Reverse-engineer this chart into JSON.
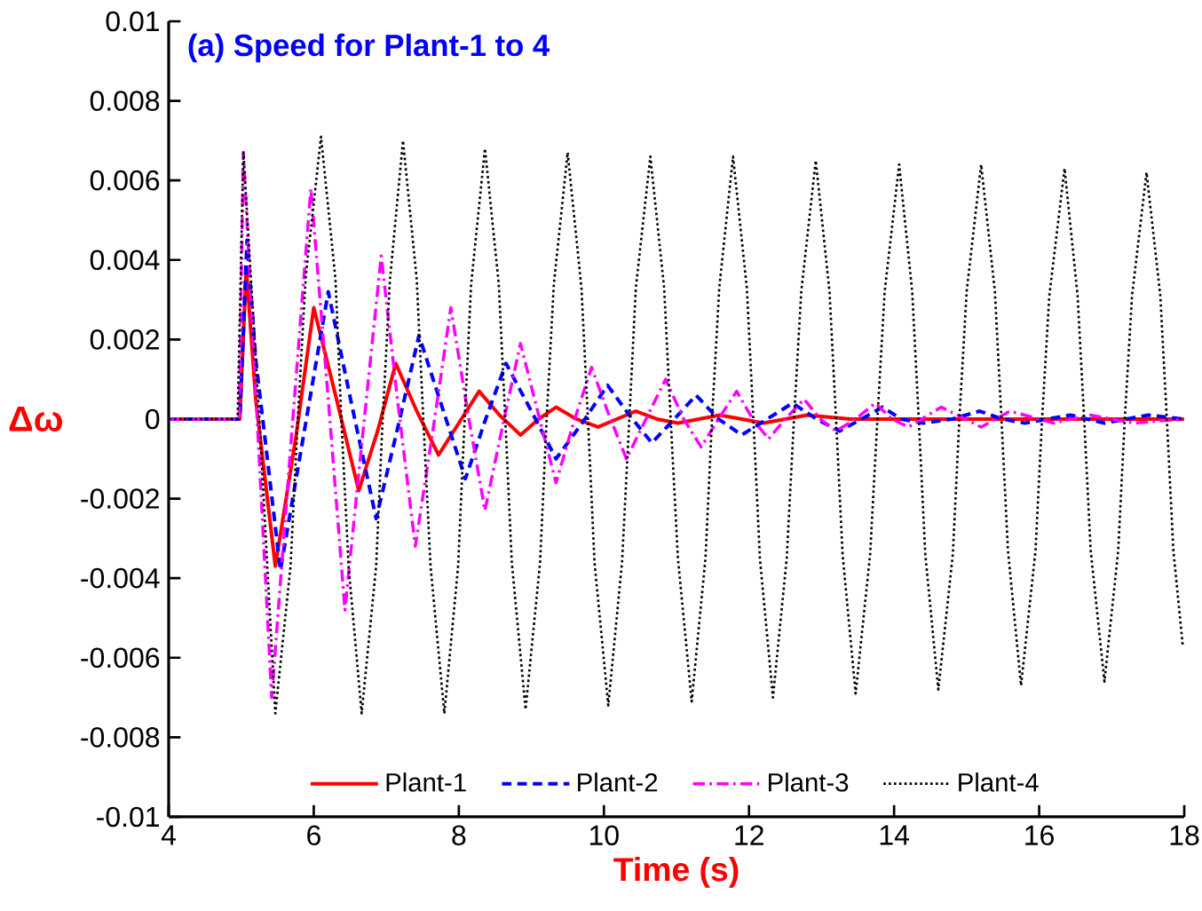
{
  "chart_data": {
    "type": "line",
    "title": "(a) Speed for Plant-1 to 4",
    "xlabel": "Time (s)",
    "ylabel": "Δω",
    "xlim": [
      4,
      18
    ],
    "xticks": [
      4,
      6,
      8,
      10,
      12,
      14,
      16,
      18
    ],
    "ylim": [
      -0.01,
      0.01
    ],
    "yticks": [
      -0.01,
      -0.008,
      -0.006,
      -0.004,
      -0.002,
      0,
      0.002,
      0.004,
      0.006,
      0.008,
      0.01
    ],
    "grid": false,
    "legend": "bottom",
    "marker": "none",
    "series": [
      {
        "name": "Plant-1",
        "color": "#ff0000",
        "line_style": "solid",
        "x": [
          4,
          4.98,
          5.07,
          5.2,
          5.47,
          5.75,
          6.0,
          6.3,
          6.62,
          6.88,
          7.13,
          7.42,
          7.72,
          8.0,
          8.28,
          8.56,
          8.85,
          9.1,
          9.34,
          9.62,
          9.92,
          10.18,
          10.44,
          10.73,
          11.02,
          11.6,
          12.2,
          12.8,
          13.4,
          14.5,
          15.5,
          16.5,
          18
        ],
        "values": [
          0,
          0,
          0.0038,
          0.0005,
          -0.0037,
          -0.0005,
          0.0028,
          0.0006,
          -0.0018,
          -0.0003,
          0.0014,
          0.0002,
          -0.0009,
          -0.0001,
          0.0007,
          0.0001,
          -0.0004,
          0,
          0.0003,
          0,
          -0.0002,
          0,
          0.0002,
          0,
          -0.0001,
          0.0001,
          -0.0001,
          0.0001,
          0,
          0,
          0,
          0,
          0
        ]
      },
      {
        "name": "Plant-2",
        "color": "#0000ff",
        "line_style": "dashed",
        "x": [
          4,
          4.98,
          5.08,
          5.2,
          5.54,
          5.87,
          6.2,
          6.53,
          6.86,
          7.16,
          7.45,
          7.77,
          8.09,
          8.37,
          8.65,
          9.0,
          9.34,
          9.7,
          10.05,
          10.35,
          10.66,
          10.97,
          11.27,
          11.58,
          11.9,
          12.25,
          12.6,
          12.93,
          13.25,
          13.55,
          13.84,
          14.1,
          14.4,
          14.8,
          15.18,
          15.5,
          15.8,
          16.43,
          16.9,
          17.5,
          18
        ],
        "values": [
          0,
          0,
          0.0045,
          0.0015,
          -0.0038,
          -0.0003,
          0.0032,
          0.0003,
          -0.0025,
          -0.0002,
          0.0021,
          0.0003,
          -0.0015,
          0,
          0.0014,
          0.0002,
          -0.001,
          -0.0001,
          0.00085,
          0.0001,
          -0.0006,
          0,
          0.0006,
          0,
          -0.0004,
          0,
          0.0004,
          0,
          -0.0003,
          0,
          0.0003,
          0,
          -0.0001,
          0,
          0.0002,
          0,
          -0.0001,
          0.0001,
          -0.0001,
          0.0001,
          0
        ]
      },
      {
        "name": "Plant-3",
        "color": "#ff00ff",
        "line_style": "dashdot",
        "x": [
          4,
          4.97,
          5.03,
          5.22,
          5.42,
          5.69,
          5.96,
          6.2,
          6.43,
          6.68,
          6.93,
          7.16,
          7.4,
          7.65,
          7.89,
          8.12,
          8.36,
          8.6,
          8.85,
          9.1,
          9.34,
          9.58,
          9.83,
          10.07,
          10.31,
          10.58,
          10.85,
          11.1,
          11.34,
          11.58,
          11.83,
          12.05,
          12.27,
          12.5,
          12.76,
          12.98,
          13.2,
          13.47,
          13.74,
          13.97,
          14.2,
          14.65,
          15.2,
          15.6,
          16.2,
          16.7,
          17.3,
          18
        ],
        "values": [
          0,
          0,
          0.0067,
          0,
          -0.007,
          -0.0005,
          0.0058,
          0.0005,
          -0.0048,
          -0.0003,
          0.0041,
          0.0004,
          -0.0032,
          -0.0002,
          0.0028,
          0.0002,
          -0.0023,
          -0.0002,
          0.0019,
          0.0001,
          -0.0016,
          -0.0001,
          0.0013,
          0.0001,
          -0.001,
          0,
          0.001,
          0,
          -0.0007,
          0,
          0.0007,
          0,
          -0.0005,
          0,
          0.0005,
          0,
          -0.0003,
          0,
          0.0004,
          0,
          -0.0002,
          0.0003,
          -0.0002,
          0.0002,
          -0.0001,
          0.0001,
          -0.0001,
          0
        ]
      },
      {
        "name": "Plant-4",
        "color": "#000000",
        "line_style": "dotted",
        "x": [
          4,
          4.95,
          5.03,
          5.25,
          5.47,
          5.68,
          5.78,
          5.89,
          6.1,
          6.3,
          6.38,
          6.48,
          6.66,
          6.86,
          6.95,
          7.05,
          7.23,
          7.42,
          7.51,
          7.61,
          7.8,
          7.99,
          8.08,
          8.17,
          8.36,
          8.55,
          8.64,
          8.73,
          8.92,
          9.12,
          9.21,
          9.31,
          9.5,
          9.69,
          9.78,
          9.87,
          10.06,
          10.25,
          10.35,
          10.44,
          10.64,
          10.83,
          10.92,
          11.02,
          11.21,
          11.4,
          11.49,
          11.59,
          11.78,
          11.97,
          12.06,
          12.15,
          12.33,
          12.52,
          12.62,
          12.72,
          12.92,
          13.11,
          13.2,
          13.29,
          13.47,
          13.67,
          13.77,
          13.87,
          14.07,
          14.25,
          14.34,
          14.43,
          14.61,
          14.81,
          14.9,
          15.0,
          15.2,
          15.39,
          15.48,
          15.57,
          15.75,
          15.95,
          16.04,
          16.14,
          16.35,
          16.53,
          16.62,
          16.71,
          16.9,
          17.09,
          17.18,
          17.28,
          17.48,
          17.67,
          17.76,
          17.85,
          17.98
        ],
        "values": [
          0,
          0,
          0.0067,
          0,
          -0.0074,
          -0.0037,
          0,
          0.0036,
          0.0071,
          0.0035,
          0,
          -0.0037,
          -0.0074,
          -0.0037,
          0,
          0.0035,
          0.007,
          0.0035,
          0,
          -0.0037,
          -0.0074,
          -0.0037,
          0,
          0.0034,
          0.0068,
          0.0034,
          0,
          -0.0036,
          -0.0073,
          -0.0036,
          0,
          0.0034,
          0.0067,
          0.0033,
          0,
          -0.0036,
          -0.0072,
          -0.0036,
          0,
          0.0033,
          0.0066,
          0.0033,
          0,
          -0.0035,
          -0.0071,
          -0.0035,
          0,
          0.0033,
          0.0066,
          0.0033,
          0,
          -0.0035,
          -0.007,
          -0.0035,
          0,
          0.0032,
          0.0065,
          0.0032,
          0,
          -0.0034,
          -0.0069,
          -0.0034,
          0,
          0.0032,
          0.0064,
          0.0032,
          0,
          -0.0034,
          -0.0068,
          -0.0034,
          0,
          0.0032,
          0.0064,
          0.0032,
          0,
          -0.0033,
          -0.0067,
          -0.0033,
          0,
          0.0031,
          0.0063,
          0.0031,
          0,
          -0.0033,
          -0.0066,
          -0.0033,
          0,
          0.0031,
          0.0062,
          0.0031,
          0,
          -0.0033,
          -0.0057
        ]
      }
    ]
  }
}
